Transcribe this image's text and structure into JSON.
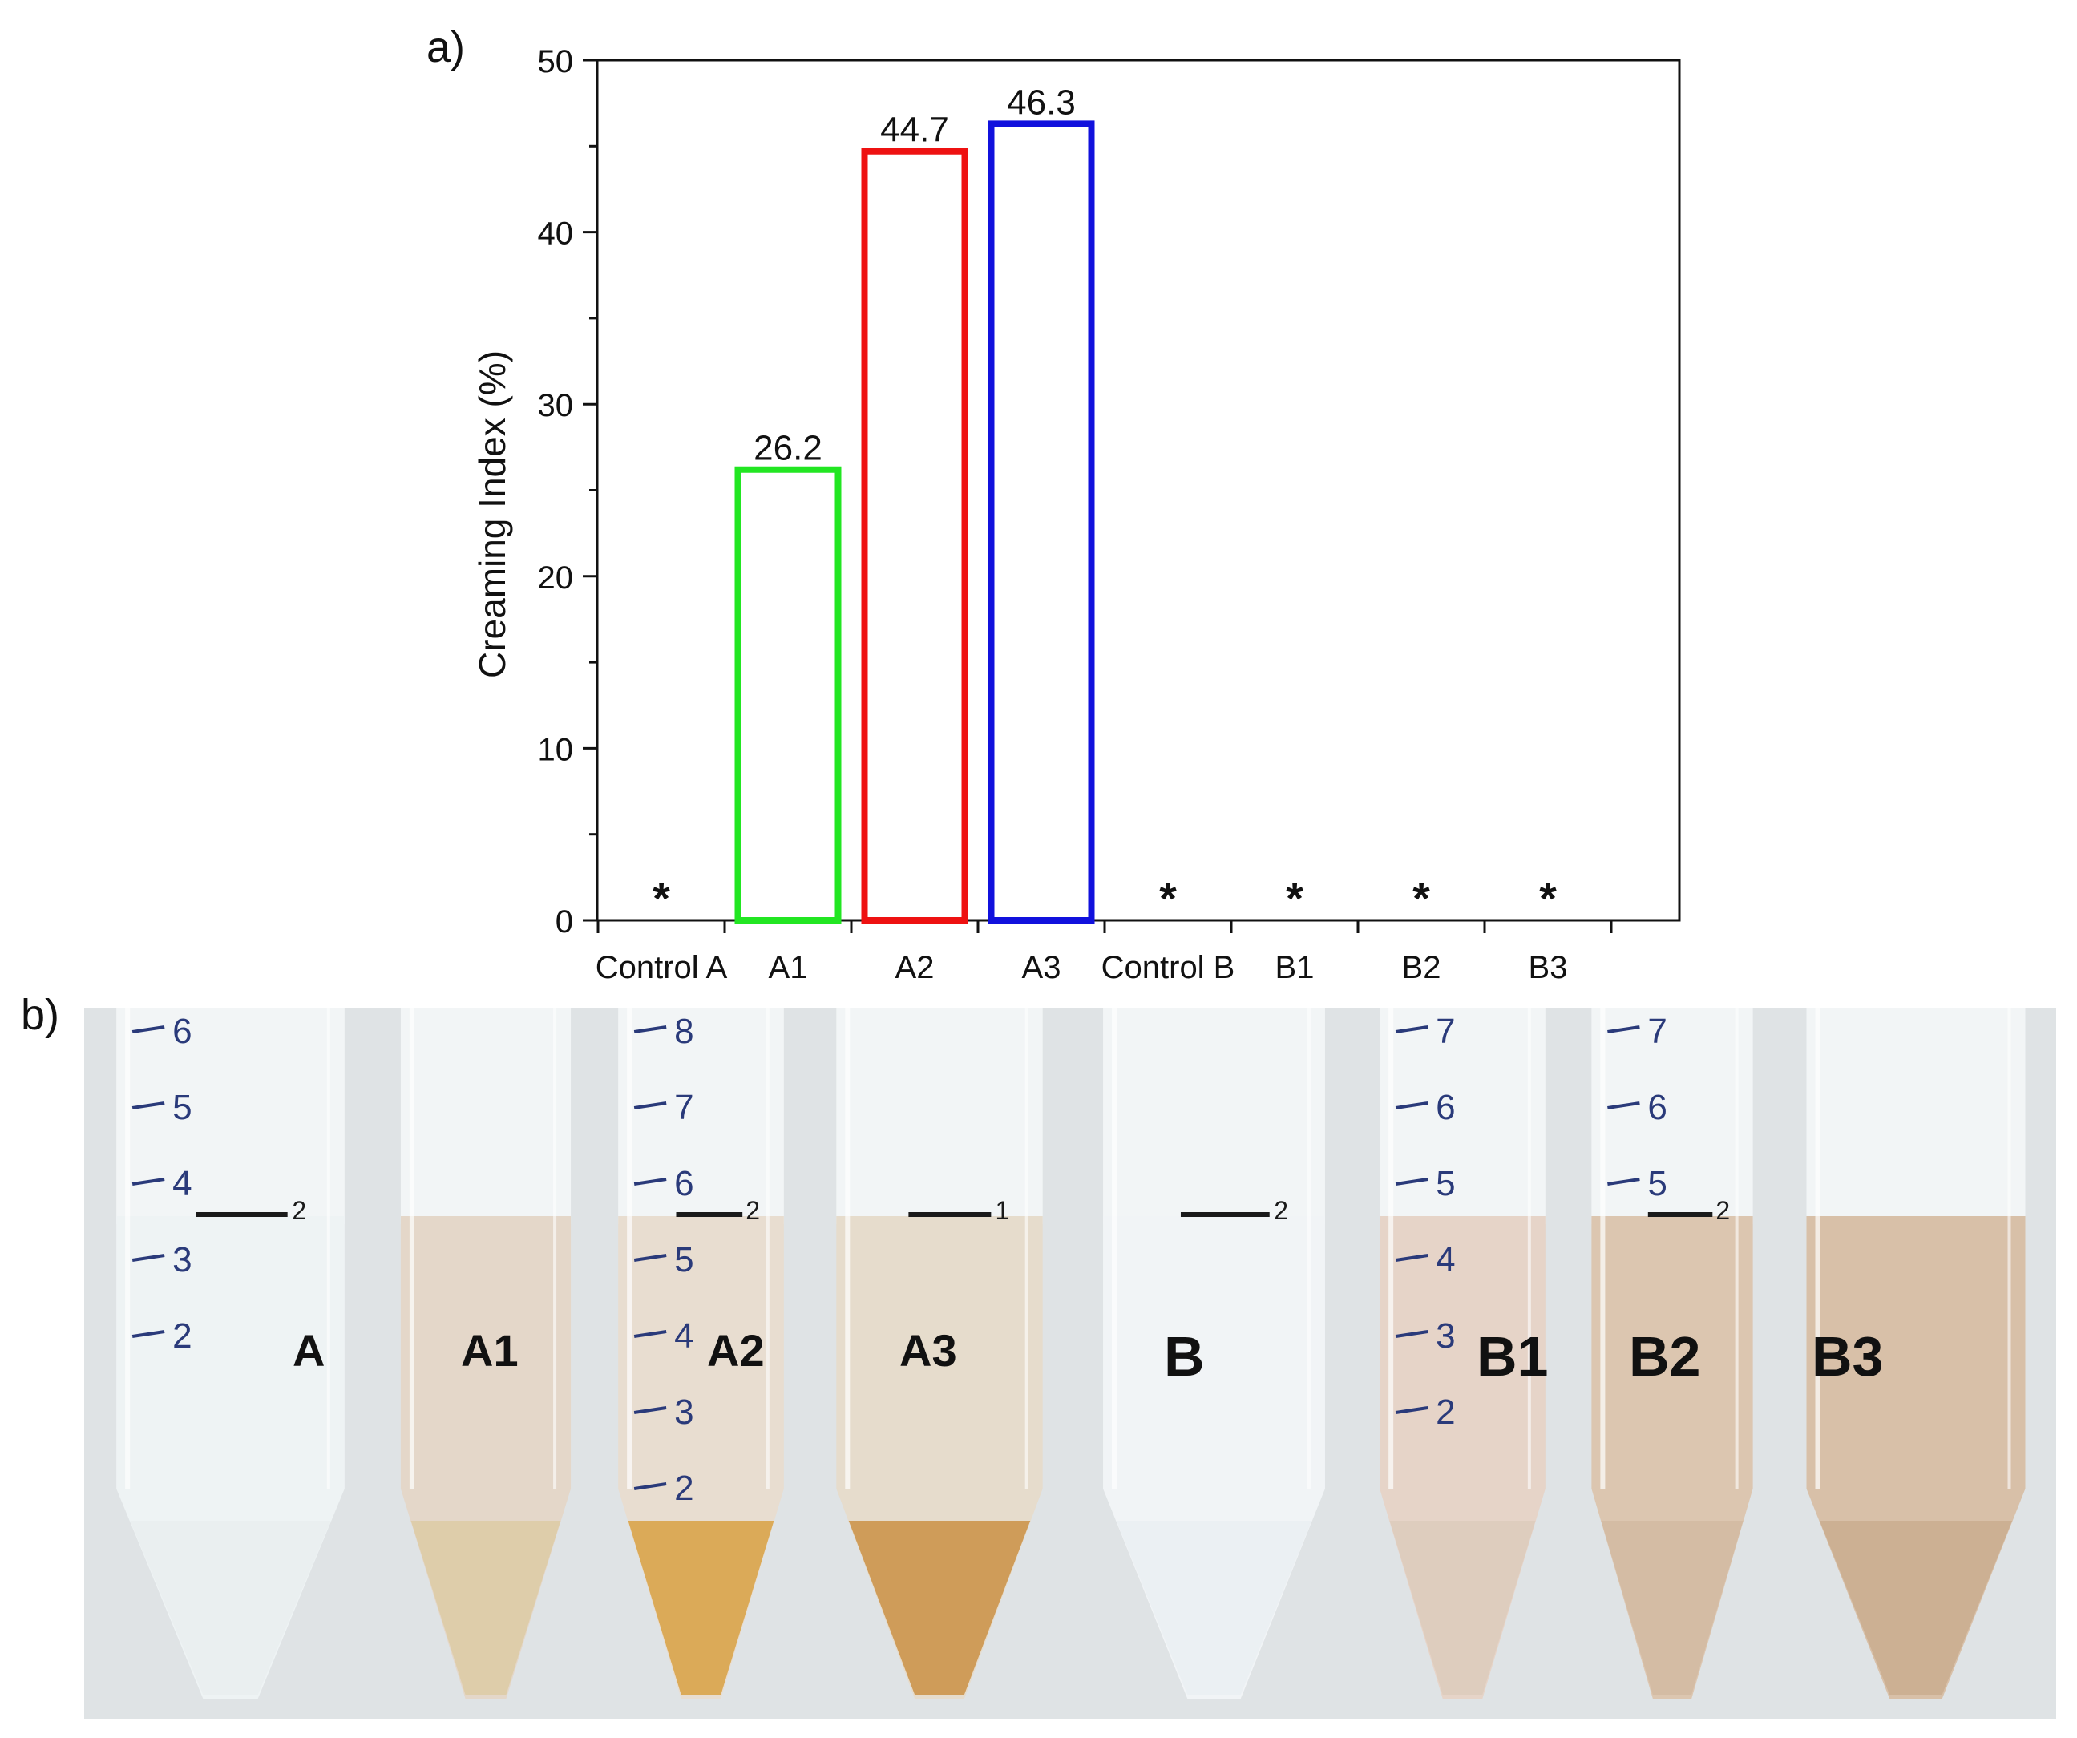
{
  "panel_a_label": "a)",
  "panel_b_label": "b)",
  "chart_data": {
    "type": "bar",
    "ylabel": "Creaming Index (%)",
    "ylim": [
      0,
      50
    ],
    "yticks": [
      0,
      10,
      20,
      30,
      40,
      50
    ],
    "categories": [
      "Control A",
      "A1",
      "A2",
      "A3",
      "Control B",
      "B1",
      "B2",
      "B3"
    ],
    "values": [
      null,
      26.2,
      44.7,
      46.3,
      null,
      null,
      null,
      null
    ],
    "value_labels": [
      "",
      "26.2",
      "44.7",
      "46.3",
      "",
      "",
      "",
      ""
    ],
    "markers": [
      "*",
      "",
      "",
      "",
      "*",
      "*",
      "*",
      "*"
    ],
    "bar_colors": [
      "",
      "#22e622",
      "#ee1111",
      "#1111dd",
      "",
      "",
      "",
      ""
    ]
  },
  "photos": [
    {
      "label": "A",
      "liquid": "#eef3f4",
      "bottom": "#e8eeef",
      "size": "small",
      "mark": "2",
      "nums": [
        "6",
        "5",
        "4",
        "3",
        "2"
      ]
    },
    {
      "label": "A1",
      "liquid": "#e4d7c9",
      "bottom": "#dccaa3",
      "size": "small",
      "mark": "",
      "nums": []
    },
    {
      "label": "A2",
      "liquid": "#e8ddd0",
      "bottom": "#d79e3a",
      "size": "small",
      "mark": "2",
      "nums": [
        "8",
        "7",
        "6",
        "5",
        "4",
        "3",
        "2"
      ]
    },
    {
      "label": "A3",
      "liquid": "#e6dccc",
      "bottom": "#c98c3c",
      "size": "small",
      "mark": "1",
      "nums": []
    },
    {
      "label": "B",
      "liquid": "#f1f4f6",
      "bottom": "#eaeff2",
      "size": "big",
      "mark": "2",
      "nums": []
    },
    {
      "label": "B1",
      "liquid": "#e6d4c8",
      "bottom": "#dccabb",
      "size": "big",
      "mark": "",
      "nums": [
        "7",
        "6",
        "5",
        "4",
        "3",
        "2"
      ]
    },
    {
      "label": "B2",
      "liquid": "#dcc6b0",
      "bottom": "#d2b9a1",
      "size": "big",
      "mark": "2",
      "nums": [
        "7",
        "6",
        "5"
      ]
    },
    {
      "label": "B3",
      "liquid": "#d8c0a8",
      "bottom": "#c9ab8d",
      "size": "big",
      "mark": "",
      "nums": []
    }
  ]
}
